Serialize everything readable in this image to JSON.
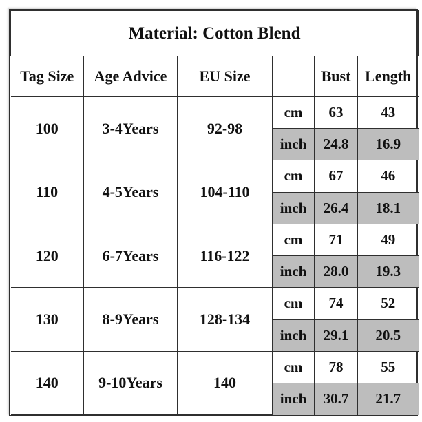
{
  "title": "Material: Cotton Blend",
  "headers": {
    "tag_size": "Tag Size",
    "age_advice": "Age Advice",
    "eu_size": "EU Size",
    "unit": "",
    "bust": "Bust",
    "length": "Length"
  },
  "units": {
    "cm": "cm",
    "inch": "inch"
  },
  "rows": [
    {
      "tag": "100",
      "age": "3-4Years",
      "eu": "92-98",
      "cm": {
        "bust": "63",
        "length": "43"
      },
      "inch": {
        "bust": "24.8",
        "length": "16.9"
      }
    },
    {
      "tag": "110",
      "age": "4-5Years",
      "eu": "104-110",
      "cm": {
        "bust": "67",
        "length": "46"
      },
      "inch": {
        "bust": "26.4",
        "length": "18.1"
      }
    },
    {
      "tag": "120",
      "age": "6-7Years",
      "eu": "116-122",
      "cm": {
        "bust": "71",
        "length": "49"
      },
      "inch": {
        "bust": "28.0",
        "length": "19.3"
      }
    },
    {
      "tag": "130",
      "age": "8-9Years",
      "eu": "128-134",
      "cm": {
        "bust": "74",
        "length": "52"
      },
      "inch": {
        "bust": "29.1",
        "length": "20.5"
      }
    },
    {
      "tag": "140",
      "age": "9-10Years",
      "eu": "140",
      "cm": {
        "bust": "78",
        "length": "55"
      },
      "inch": {
        "bust": "30.7",
        "length": "21.7"
      }
    }
  ],
  "colors": {
    "shade": "#bdbdbd",
    "border": "#2f2f2f",
    "text": "#111111"
  }
}
